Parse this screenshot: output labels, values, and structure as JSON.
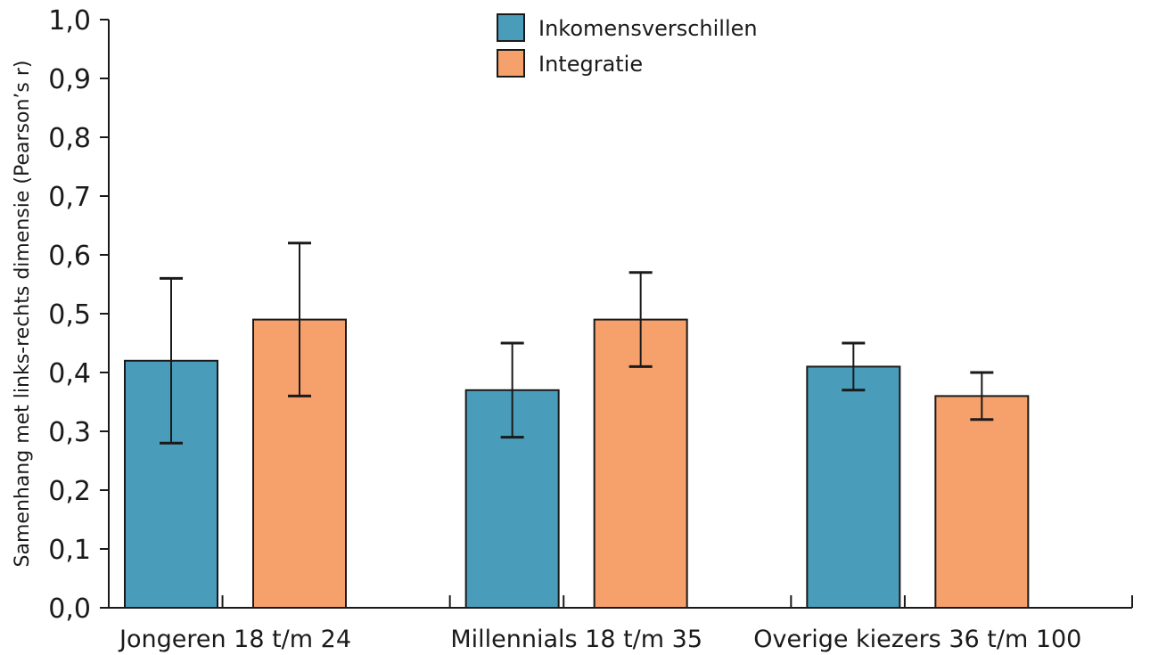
{
  "chart_data": {
    "type": "bar",
    "title": "",
    "xlabel": "",
    "ylabel": "Samenhang met links-rechts dimensie (Pearson’s r)",
    "ylim": [
      0,
      1.0
    ],
    "yticks": [
      "0,0",
      "0,1",
      "0,2",
      "0,3",
      "0,4",
      "0,5",
      "0,6",
      "0,7",
      "0,8",
      "0,9",
      "1,0"
    ],
    "categories": [
      "Jongeren 18 t/m 24",
      "Millennials 18 t/m 35",
      "Overige kiezers  36 t/m 100"
    ],
    "series": [
      {
        "name": "Inkomensverschillen",
        "color": "#4a9dba",
        "values": [
          0.42,
          0.37,
          0.41
        ],
        "error_low": [
          0.28,
          0.29,
          0.37
        ],
        "error_high": [
          0.56,
          0.45,
          0.45
        ]
      },
      {
        "name": "Integratie",
        "color": "#f6a06c",
        "values": [
          0.49,
          0.49,
          0.36
        ],
        "error_low": [
          0.36,
          0.41,
          0.32
        ],
        "error_high": [
          0.62,
          0.57,
          0.4
        ]
      }
    ],
    "grid": false,
    "legend_position": "top-center",
    "error_bars": true
  }
}
